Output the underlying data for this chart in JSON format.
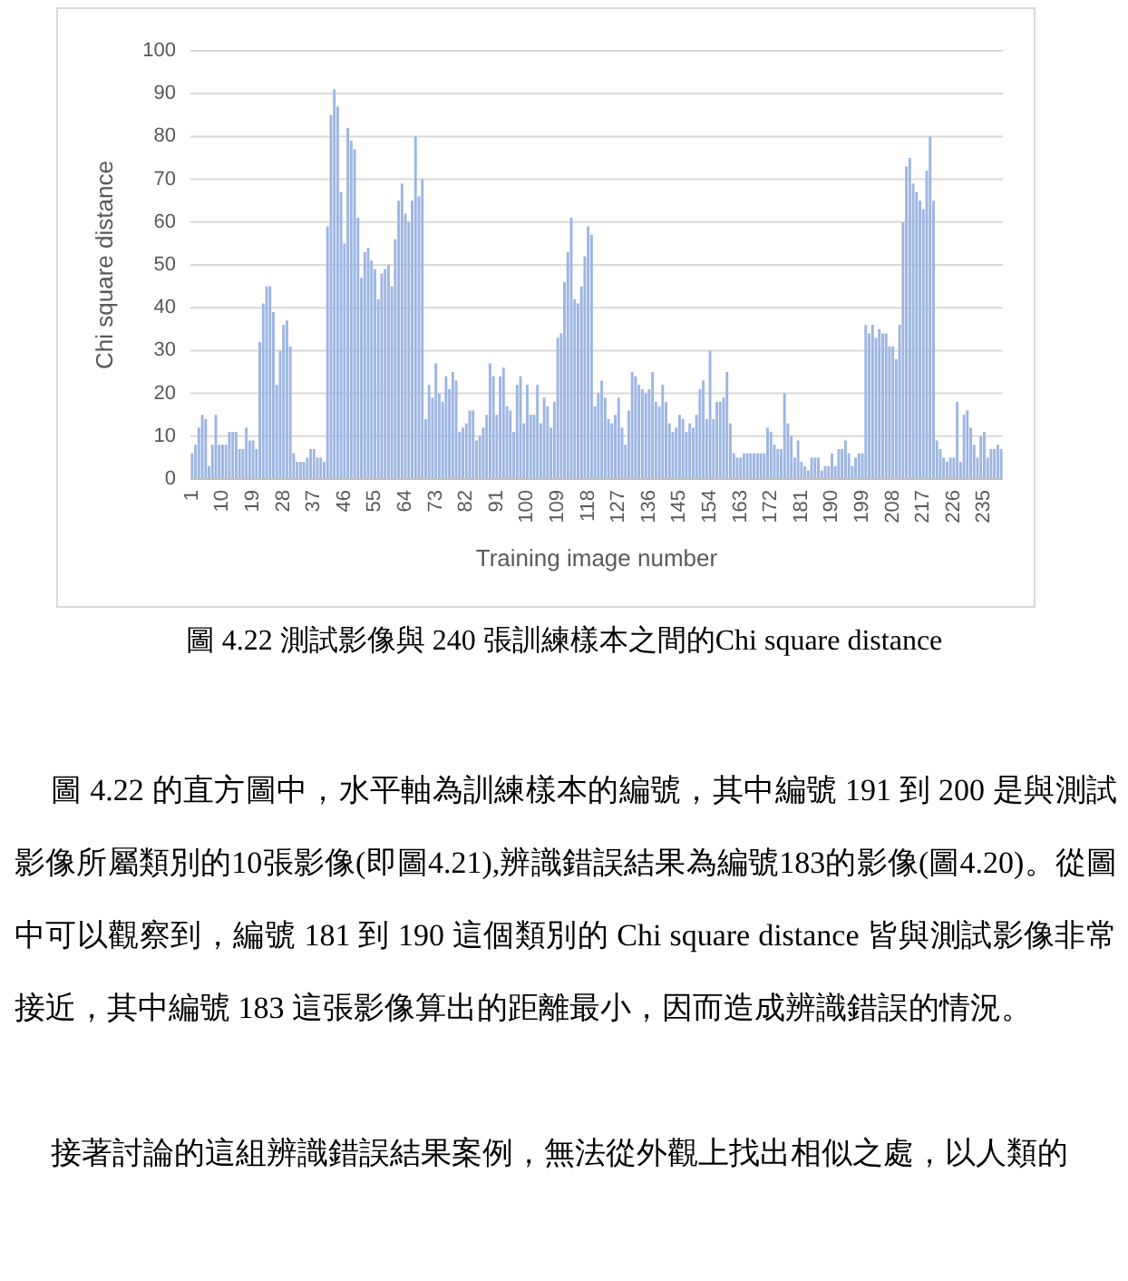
{
  "chart_data": {
    "type": "bar",
    "title": "圖 4.22 測試影像與 240 張訓練樣本之間的Chi square distance",
    "xlabel": "Training image number",
    "ylabel": "Chi square distance",
    "categories": [
      "1",
      null,
      null,
      null,
      null,
      null,
      null,
      null,
      null,
      "10",
      null,
      null,
      null,
      null,
      null,
      null,
      null,
      null,
      "19",
      null,
      null,
      null,
      null,
      null,
      null,
      null,
      null,
      "28",
      null,
      null,
      null,
      null,
      null,
      null,
      null,
      null,
      "37",
      null,
      null,
      null,
      null,
      null,
      null,
      null,
      null,
      "46",
      null,
      null,
      null,
      null,
      null,
      null,
      null,
      null,
      "55",
      null,
      null,
      null,
      null,
      null,
      null,
      null,
      null,
      "64",
      null,
      null,
      null,
      null,
      null,
      null,
      null,
      null,
      "73",
      null,
      null,
      null,
      null,
      null,
      null,
      null,
      null,
      "82",
      null,
      null,
      null,
      null,
      null,
      null,
      null,
      null,
      "91",
      null,
      null,
      null,
      null,
      null,
      null,
      null,
      null,
      "100",
      null,
      null,
      null,
      null,
      null,
      null,
      null,
      null,
      "109",
      null,
      null,
      null,
      null,
      null,
      null,
      null,
      null,
      "118",
      null,
      null,
      null,
      null,
      null,
      null,
      null,
      null,
      "127",
      null,
      null,
      null,
      null,
      null,
      null,
      null,
      null,
      "136",
      null,
      null,
      null,
      null,
      null,
      null,
      null,
      null,
      "145",
      null,
      null,
      null,
      null,
      null,
      null,
      null,
      null,
      "154",
      null,
      null,
      null,
      null,
      null,
      null,
      null,
      null,
      "163",
      null,
      null,
      null,
      null,
      null,
      null,
      null,
      null,
      "172",
      null,
      null,
      null,
      null,
      null,
      null,
      null,
      null,
      "181",
      null,
      null,
      null,
      null,
      null,
      null,
      null,
      null,
      "190",
      null,
      null,
      null,
      null,
      null,
      null,
      null,
      null,
      "199",
      null,
      null,
      null,
      null,
      null,
      null,
      null,
      null,
      "208",
      null,
      null,
      null,
      null,
      null,
      null,
      null,
      null,
      "217",
      null,
      null,
      null,
      null,
      null,
      null,
      null,
      null,
      "226",
      null,
      null,
      null,
      null,
      null,
      null,
      null,
      null,
      "235",
      null,
      null,
      null,
      null,
      null
    ],
    "values": [
      6,
      8,
      12,
      15,
      14,
      3,
      8,
      15,
      8,
      8,
      8,
      11,
      11,
      11,
      7,
      7,
      12,
      9,
      9,
      7,
      32,
      41,
      45,
      45,
      39,
      22,
      30,
      36,
      37,
      31,
      6,
      4,
      4,
      4,
      5,
      7,
      7,
      5,
      5,
      4,
      59,
      85,
      91,
      87,
      67,
      55,
      82,
      79,
      77,
      61,
      47,
      53,
      54,
      51,
      49,
      42,
      48,
      49,
      50,
      45,
      56,
      65,
      69,
      62,
      60,
      65,
      80,
      66,
      70,
      14,
      22,
      19,
      27,
      20,
      18,
      24,
      21,
      25,
      23,
      11,
      12,
      13,
      16,
      16,
      9,
      10,
      12,
      15,
      27,
      24,
      15,
      24,
      26,
      17,
      16,
      11,
      22,
      24,
      13,
      22,
      15,
      15,
      22,
      13,
      19,
      17,
      12,
      18,
      33,
      34,
      46,
      53,
      61,
      42,
      41,
      45,
      52,
      59,
      57,
      17,
      20,
      23,
      19,
      14,
      13,
      15,
      19,
      12,
      8,
      16,
      25,
      24,
      22,
      21,
      20,
      21,
      25,
      18,
      17,
      22,
      18,
      13,
      11,
      12,
      15,
      14,
      11,
      13,
      12,
      15,
      21,
      23,
      14,
      30,
      14,
      18,
      18,
      19,
      25,
      13,
      6,
      5,
      5,
      6,
      6,
      6,
      6,
      6,
      6,
      6,
      12,
      11,
      8,
      7,
      7,
      20,
      13,
      10,
      5,
      9,
      4,
      3,
      2,
      5,
      5,
      5,
      2,
      3,
      3,
      6,
      3,
      7,
      7,
      9,
      6,
      3,
      5,
      6,
      6,
      36,
      34,
      36,
      33,
      35,
      34,
      34,
      31,
      31,
      28,
      36,
      60,
      73,
      75,
      69,
      67,
      65,
      63,
      72,
      80,
      65,
      9,
      7,
      5,
      4,
      5,
      5,
      18,
      4,
      15,
      16,
      12,
      8,
      5,
      10,
      11,
      5,
      7,
      7,
      8,
      7
    ],
    "color": "#9db6e2",
    "ylim": [
      0,
      100
    ],
    "yticks": [
      0,
      10,
      20,
      30,
      40,
      50,
      60,
      70,
      80,
      90,
      100
    ],
    "grid": "y",
    "annotations": [
      "圖 4.22 的直方圖中，水平軸為訓練樣本的編號，其中編號 191 到 200 是與測試影像所屬類別的10張影像(即圖4.21),辨識錯誤結果為編號183的影像(圖4.20)。從圖中可以觀察到，編號 181 到 190 這個類別的 Chi square distance 皆與測試影像非常接近，其中編號 183 這張影像算出的距離最小，因而造成辨識錯誤的情況。",
      "接著討論的這組辨識錯誤結果案例，無法從外觀上找出相似之處，以人類的"
    ]
  }
}
